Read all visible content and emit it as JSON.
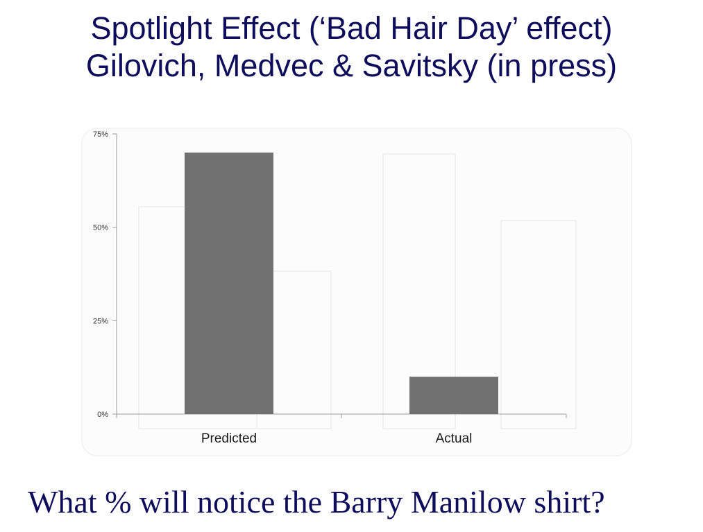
{
  "slide": {
    "title_line1": "Spotlight Effect (‘Bad Hair Day’ effect)",
    "title_line2": "Gilovich, Medvec & Savitsky (in press)",
    "question": "What % will notice the Barry Manilow shirt?"
  },
  "colors": {
    "text": "#0d0d5c",
    "bar": "#717171",
    "axis": "#9a9a9a",
    "tick_label": "#333333"
  },
  "chart_data": {
    "type": "bar",
    "categories": [
      "Predicted",
      "Actual"
    ],
    "values": [
      70,
      10
    ],
    "ylim": [
      0,
      75
    ],
    "yticks": [
      0,
      25,
      50,
      75
    ],
    "ytick_labels": [
      "0%",
      "25%",
      "50%",
      "75%"
    ],
    "title": "",
    "xlabel": "",
    "ylabel": "",
    "grid": false,
    "legend": "none"
  }
}
